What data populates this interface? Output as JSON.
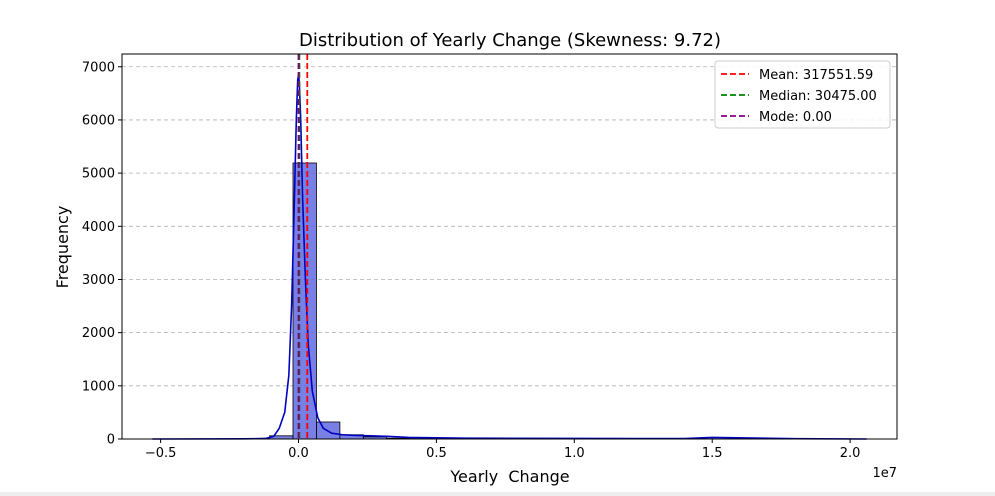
{
  "chart_data": {
    "type": "bar",
    "title": "Distribution of Yearly  Change (Skewness: 9.72)",
    "xlabel": "Yearly  Change",
    "ylabel": "Frequency",
    "x_offset_label": "1e7",
    "xlim": [
      -6400000,
      21700000
    ],
    "ylim": [
      0,
      7240
    ],
    "x_ticks": [
      -0.5,
      0.0,
      0.5,
      1.0,
      1.5,
      2.0
    ],
    "x_tick_labels": [
      "−0.5",
      "0.0",
      "0.5",
      "1.0",
      "1.5",
      "2.0"
    ],
    "y_ticks": [
      0,
      1000,
      2000,
      3000,
      4000,
      5000,
      6000,
      7000
    ],
    "y_tick_labels": [
      "0",
      "1000",
      "2000",
      "3000",
      "4000",
      "5000",
      "6000",
      "7000"
    ],
    "grid": "y-dashed",
    "bar_color": "#6068e0",
    "kde_color": "#0000c0",
    "histogram": [
      {
        "x0": -1050000,
        "x1": -200000,
        "count": 60
      },
      {
        "x0": -200000,
        "x1": 650000,
        "count": 5190
      },
      {
        "x0": 650000,
        "x1": 1500000,
        "count": 320
      },
      {
        "x0": 1500000,
        "x1": 2350000,
        "count": 80
      },
      {
        "x0": 2350000,
        "x1": 3200000,
        "count": 40
      },
      {
        "x0": 3200000,
        "x1": 4050000,
        "count": 15
      },
      {
        "x0": 4050000,
        "x1": 4900000,
        "count": 8
      },
      {
        "x0": 4900000,
        "x1": 5750000,
        "count": 5
      },
      {
        "x0": 5750000,
        "x1": 6600000,
        "count": 3
      }
    ],
    "kde": {
      "x": [
        -5300000,
        -2000000,
        -1200000,
        -900000,
        -700000,
        -500000,
        -350000,
        -250000,
        -150000,
        -80000,
        -30000,
        0,
        30000,
        80000,
        150000,
        250000,
        350000,
        500000,
        700000,
        900000,
        1200000,
        1600000,
        2000000,
        2600000,
        3200000,
        4000000,
        6000000,
        10000000,
        14000000,
        15000000,
        18000000,
        20600000
      ],
      "y": [
        0,
        3,
        10,
        50,
        200,
        500,
        1200,
        2500,
        4500,
        6000,
        6750,
        6850,
        6700,
        6000,
        4500,
        3000,
        1800,
        900,
        400,
        200,
        110,
        80,
        70,
        60,
        50,
        30,
        15,
        10,
        8,
        30,
        5,
        0
      ]
    },
    "reference_lines": [
      {
        "name": "Mean: 317551.59",
        "value": 317551.59,
        "color": "#ff0000"
      },
      {
        "name": "Median: 30475.00",
        "value": 30475.0,
        "color": "#008000"
      },
      {
        "name": "Mode: 0.00",
        "value": 0.0,
        "color": "#800080"
      }
    ],
    "legend_position": "top-right"
  }
}
